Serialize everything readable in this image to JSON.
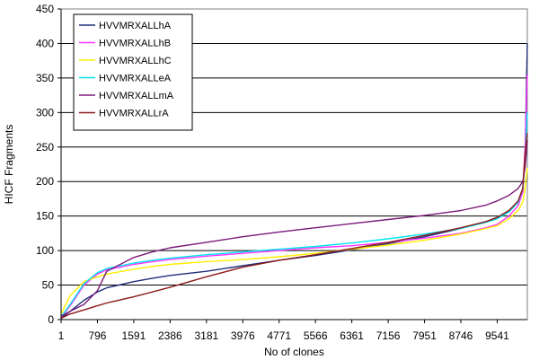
{
  "chart_data": {
    "type": "line",
    "title": "",
    "xlabel": "No of clones",
    "ylabel": "HICF Fragments",
    "xlim": [
      1,
      10200
    ],
    "ylim": [
      0,
      450
    ],
    "yticks": [
      0,
      50,
      100,
      150,
      200,
      250,
      300,
      350,
      400,
      450
    ],
    "xticks": [
      1,
      796,
      1591,
      2386,
      3181,
      3976,
      4771,
      5566,
      6361,
      7156,
      7951,
      8746,
      9541
    ],
    "xtick_labels": [
      "1",
      "796",
      "1591",
      "2386",
      "3181",
      "3976",
      "4771",
      "5566",
      "6361",
      "7156",
      "7951",
      "8746",
      "9541"
    ],
    "grid": "horizontal",
    "legend_position": "top-left",
    "series": [
      {
        "name": "HVVMRXALLhA",
        "color": "#1f2f7a",
        "x": [
          1,
          200,
          500,
          796,
          1000,
          1591,
          2000,
          2386,
          3181,
          3976,
          4771,
          5566,
          6361,
          7156,
          7951,
          8746,
          9300,
          9541,
          9800,
          10000,
          10100,
          10150,
          10200
        ],
        "values": [
          2,
          12,
          28,
          40,
          46,
          55,
          60,
          64,
          70,
          78,
          86,
          93,
          101,
          110,
          120,
          132,
          142,
          148,
          158,
          170,
          185,
          240,
          400
        ]
      },
      {
        "name": "HVVMRXALLhB",
        "color": "#ff33ff",
        "x": [
          1,
          200,
          500,
          796,
          1000,
          1591,
          2000,
          2386,
          3181,
          3976,
          4771,
          5566,
          6361,
          7156,
          7951,
          8746,
          9300,
          9541,
          9800,
          10000,
          10100,
          10150,
          10200
        ],
        "values": [
          3,
          20,
          50,
          66,
          72,
          80,
          84,
          87,
          92,
          96,
          100,
          104,
          107,
          112,
          118,
          125,
          133,
          138,
          150,
          165,
          185,
          250,
          355
        ]
      },
      {
        "name": "HVVMRXALLhC",
        "color": "#ffee00",
        "x": [
          1,
          200,
          500,
          796,
          1000,
          1591,
          2000,
          2386,
          3181,
          3976,
          4771,
          5566,
          6361,
          7156,
          7951,
          8746,
          9300,
          9541,
          9800,
          10000,
          10100,
          10150,
          10200
        ],
        "values": [
          8,
          35,
          55,
          62,
          66,
          73,
          77,
          80,
          84,
          87,
          91,
          96,
          102,
          108,
          115,
          124,
          132,
          136,
          146,
          158,
          170,
          190,
          220
        ]
      },
      {
        "name": "HVVMRXALLeA",
        "color": "#00e5ee",
        "x": [
          1,
          200,
          500,
          796,
          1000,
          1591,
          2000,
          2386,
          3181,
          3976,
          4771,
          5566,
          6361,
          7156,
          7951,
          8746,
          9300,
          9541,
          9800,
          10000,
          10100,
          10150,
          10200
        ],
        "values": [
          4,
          22,
          52,
          68,
          74,
          82,
          86,
          89,
          94,
          98,
          102,
          106,
          111,
          117,
          124,
          132,
          141,
          146,
          156,
          170,
          190,
          230,
          300
        ]
      },
      {
        "name": "HVVMRXALLmA",
        "color": "#7a1a7a",
        "x": [
          1,
          200,
          500,
          796,
          1000,
          1591,
          2000,
          2386,
          3181,
          3976,
          4771,
          5566,
          6361,
          7156,
          7951,
          8746,
          9300,
          9541,
          9800,
          10000,
          10100,
          10150,
          10200
        ],
        "values": [
          5,
          12,
          22,
          42,
          70,
          90,
          98,
          104,
          112,
          120,
          127,
          133,
          139,
          145,
          151,
          158,
          166,
          172,
          180,
          190,
          200,
          220,
          260
        ]
      },
      {
        "name": "HVVMRXALLrA",
        "color": "#8b1a1a",
        "x": [
          1,
          200,
          500,
          796,
          1000,
          1591,
          2000,
          2386,
          3181,
          3976,
          4771,
          5566,
          6361,
          7156,
          7951,
          8746,
          9300,
          9541,
          9800,
          10000,
          10100,
          10150,
          10200
        ],
        "values": [
          2,
          8,
          14,
          20,
          24,
          33,
          40,
          47,
          62,
          76,
          86,
          94,
          103,
          112,
          122,
          133,
          142,
          148,
          158,
          172,
          190,
          240,
          270
        ]
      }
    ]
  }
}
